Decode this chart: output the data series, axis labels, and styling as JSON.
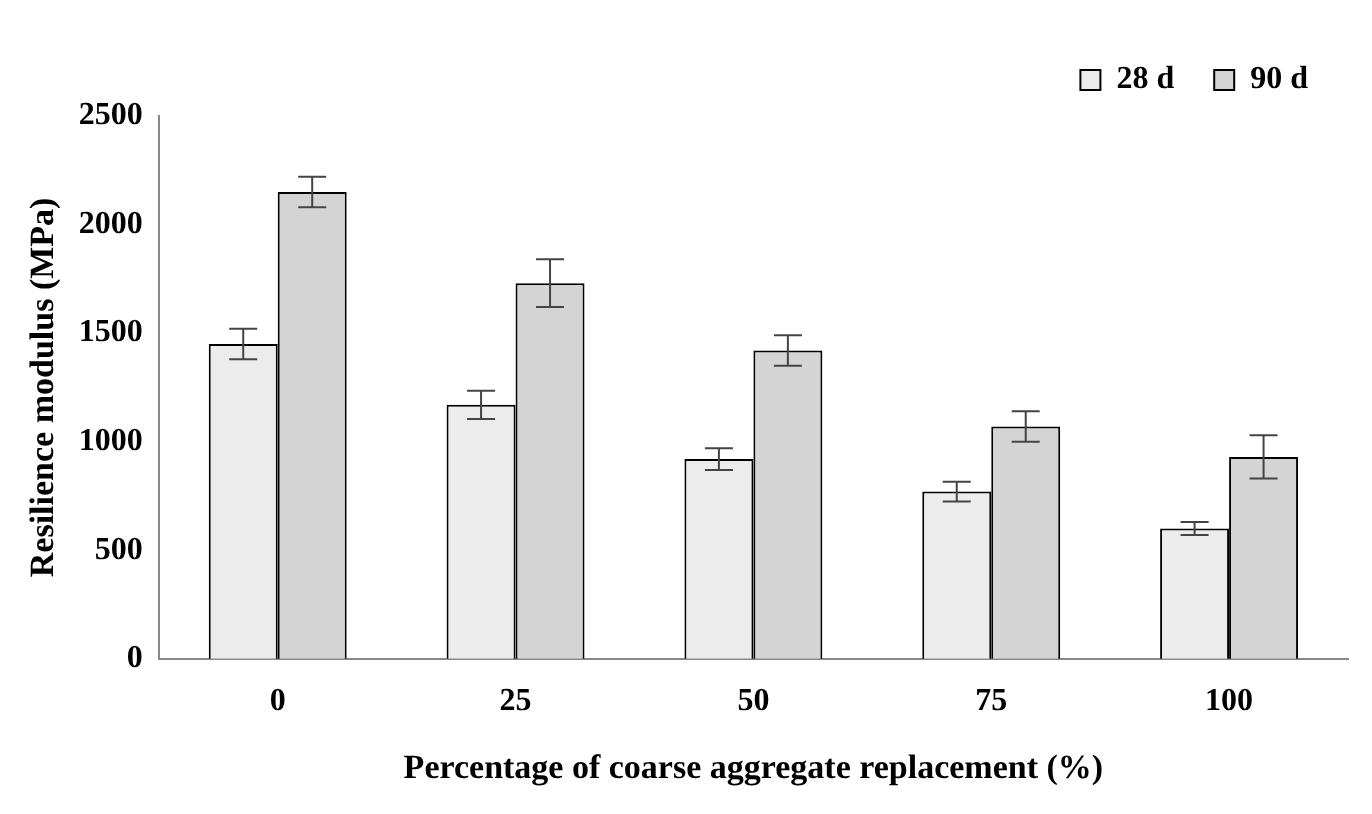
{
  "chart_data": {
    "type": "bar",
    "xlabel": "Percentage of coarse aggregate replacement (%)",
    "ylabel": "Resilience modulus (MPa)",
    "categories": [
      "0",
      "25",
      "50",
      "75",
      "100"
    ],
    "series": [
      {
        "name": "28 d",
        "color": "#ececec",
        "values": [
          1450,
          1170,
          920,
          770,
          600
        ],
        "errors": [
          70,
          65,
          50,
          45,
          30
        ]
      },
      {
        "name": "90 d",
        "color": "#d4d4d4",
        "values": [
          2150,
          1730,
          1420,
          1070,
          930
        ],
        "errors": [
          70,
          110,
          70,
          70,
          100
        ]
      }
    ],
    "ylim": [
      0,
      2500
    ],
    "yticks": [
      0,
      500,
      1000,
      1500,
      2000,
      2500
    ],
    "grid": false,
    "legend": "top right"
  }
}
